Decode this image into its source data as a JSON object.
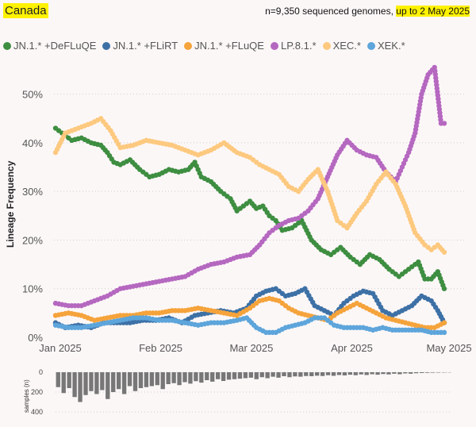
{
  "header": {
    "title": "Canada",
    "info_prefix": "n=9,350 sequenced genomes, ",
    "info_highlight": "up to 2 May 2025"
  },
  "colors": {
    "JN.1.* +DeFLuQE": "#3e8e41",
    "JN.1.* +FLiRT": "#3d71a6",
    "JN.1.* +FLuQE": "#f5a33b",
    "LP.8.1.*": "#b568c0",
    "XEC.*": "#fdc97f",
    "XEK.*": "#5da5db"
  },
  "chart_data": {
    "type": "line",
    "ylabel": "Lineage Frequency",
    "xlim": [
      "2025-01-01",
      "2025-05-01"
    ],
    "ylim": [
      0,
      0.55
    ],
    "yticks": [
      "0%",
      "10%",
      "20%",
      "30%",
      "40%",
      "50%"
    ],
    "xticks": [
      "Jan 2025",
      "Feb 2025",
      "Mar 2025",
      "Apr 2025",
      "May 2025"
    ],
    "grid": "horizontal dotted",
    "legend": "top",
    "series": [
      {
        "name": "JN.1.* +DeFLuQE",
        "points": [
          [
            "2025-01-01",
            0.43
          ],
          [
            "2025-01-03",
            0.42
          ],
          [
            "2025-01-06",
            0.405
          ],
          [
            "2025-01-09",
            0.41
          ],
          [
            "2025-01-12",
            0.4
          ],
          [
            "2025-01-15",
            0.395
          ],
          [
            "2025-01-17",
            0.38
          ],
          [
            "2025-01-19",
            0.36
          ],
          [
            "2025-01-21",
            0.355
          ],
          [
            "2025-01-24",
            0.365
          ],
          [
            "2025-01-27",
            0.345
          ],
          [
            "2025-01-30",
            0.33
          ],
          [
            "2025-02-02",
            0.335
          ],
          [
            "2025-02-05",
            0.345
          ],
          [
            "2025-02-08",
            0.34
          ],
          [
            "2025-02-11",
            0.345
          ],
          [
            "2025-02-13",
            0.36
          ],
          [
            "2025-02-15",
            0.33
          ],
          [
            "2025-02-18",
            0.32
          ],
          [
            "2025-02-21",
            0.3
          ],
          [
            "2025-02-24",
            0.285
          ],
          [
            "2025-02-26",
            0.26
          ],
          [
            "2025-02-28",
            0.27
          ],
          [
            "2025-03-02",
            0.28
          ],
          [
            "2025-03-04",
            0.265
          ],
          [
            "2025-03-06",
            0.27
          ],
          [
            "2025-03-08",
            0.25
          ],
          [
            "2025-03-10",
            0.24
          ],
          [
            "2025-03-12",
            0.22
          ],
          [
            "2025-03-15",
            0.225
          ],
          [
            "2025-03-18",
            0.24
          ],
          [
            "2025-03-21",
            0.2
          ],
          [
            "2025-03-24",
            0.18
          ],
          [
            "2025-03-27",
            0.17
          ],
          [
            "2025-03-30",
            0.185
          ],
          [
            "2025-04-02",
            0.165
          ],
          [
            "2025-04-05",
            0.15
          ],
          [
            "2025-04-08",
            0.17
          ],
          [
            "2025-04-11",
            0.16
          ],
          [
            "2025-04-14",
            0.14
          ],
          [
            "2025-04-17",
            0.125
          ],
          [
            "2025-04-20",
            0.14
          ],
          [
            "2025-04-23",
            0.155
          ],
          [
            "2025-04-25",
            0.12
          ],
          [
            "2025-04-27",
            0.12
          ],
          [
            "2025-04-29",
            0.135
          ],
          [
            "2025-05-01",
            0.1
          ]
        ]
      },
      {
        "name": "JN.1.* +FLiRT",
        "points": [
          [
            "2025-01-01",
            0.03
          ],
          [
            "2025-01-04",
            0.02
          ],
          [
            "2025-01-08",
            0.025
          ],
          [
            "2025-01-12",
            0.02
          ],
          [
            "2025-01-16",
            0.03
          ],
          [
            "2025-01-20",
            0.03
          ],
          [
            "2025-01-24",
            0.03
          ],
          [
            "2025-01-28",
            0.035
          ],
          [
            "2025-02-01",
            0.035
          ],
          [
            "2025-02-05",
            0.04
          ],
          [
            "2025-02-09",
            0.03
          ],
          [
            "2025-02-13",
            0.045
          ],
          [
            "2025-02-17",
            0.05
          ],
          [
            "2025-02-21",
            0.055
          ],
          [
            "2025-02-25",
            0.05
          ],
          [
            "2025-03-01",
            0.06
          ],
          [
            "2025-03-04",
            0.085
          ],
          [
            "2025-03-07",
            0.095
          ],
          [
            "2025-03-10",
            0.1
          ],
          [
            "2025-03-13",
            0.085
          ],
          [
            "2025-03-16",
            0.09
          ],
          [
            "2025-03-19",
            0.1
          ],
          [
            "2025-03-22",
            0.065
          ],
          [
            "2025-03-25",
            0.055
          ],
          [
            "2025-03-28",
            0.045
          ],
          [
            "2025-03-31",
            0.07
          ],
          [
            "2025-04-03",
            0.085
          ],
          [
            "2025-04-06",
            0.095
          ],
          [
            "2025-04-09",
            0.09
          ],
          [
            "2025-04-12",
            0.055
          ],
          [
            "2025-04-15",
            0.045
          ],
          [
            "2025-04-18",
            0.055
          ],
          [
            "2025-04-21",
            0.065
          ],
          [
            "2025-04-24",
            0.085
          ],
          [
            "2025-04-27",
            0.075
          ],
          [
            "2025-04-29",
            0.055
          ],
          [
            "2025-05-01",
            0.03
          ]
        ]
      },
      {
        "name": "JN.1.* +FLuQE",
        "points": [
          [
            "2025-01-01",
            0.045
          ],
          [
            "2025-01-05",
            0.05
          ],
          [
            "2025-01-09",
            0.045
          ],
          [
            "2025-01-13",
            0.035
          ],
          [
            "2025-01-17",
            0.04
          ],
          [
            "2025-01-21",
            0.045
          ],
          [
            "2025-01-25",
            0.045
          ],
          [
            "2025-01-29",
            0.05
          ],
          [
            "2025-02-02",
            0.05
          ],
          [
            "2025-02-06",
            0.055
          ],
          [
            "2025-02-10",
            0.055
          ],
          [
            "2025-02-14",
            0.06
          ],
          [
            "2025-02-18",
            0.055
          ],
          [
            "2025-02-22",
            0.05
          ],
          [
            "2025-02-26",
            0.045
          ],
          [
            "2025-03-02",
            0.06
          ],
          [
            "2025-03-05",
            0.075
          ],
          [
            "2025-03-08",
            0.08
          ],
          [
            "2025-03-11",
            0.075
          ],
          [
            "2025-03-14",
            0.06
          ],
          [
            "2025-03-17",
            0.05
          ],
          [
            "2025-03-20",
            0.045
          ],
          [
            "2025-03-23",
            0.04
          ],
          [
            "2025-03-26",
            0.035
          ],
          [
            "2025-03-29",
            0.05
          ],
          [
            "2025-04-01",
            0.06
          ],
          [
            "2025-04-04",
            0.07
          ],
          [
            "2025-04-07",
            0.06
          ],
          [
            "2025-04-10",
            0.05
          ],
          [
            "2025-04-13",
            0.04
          ],
          [
            "2025-04-16",
            0.035
          ],
          [
            "2025-04-19",
            0.03
          ],
          [
            "2025-04-22",
            0.025
          ],
          [
            "2025-04-25",
            0.02
          ],
          [
            "2025-04-28",
            0.02
          ],
          [
            "2025-05-01",
            0.03
          ]
        ]
      },
      {
        "name": "LP.8.1.*",
        "points": [
          [
            "2025-01-01",
            0.07
          ],
          [
            "2025-01-05",
            0.065
          ],
          [
            "2025-01-09",
            0.065
          ],
          [
            "2025-01-13",
            0.075
          ],
          [
            "2025-01-17",
            0.085
          ],
          [
            "2025-01-21",
            0.1
          ],
          [
            "2025-01-25",
            0.105
          ],
          [
            "2025-01-29",
            0.11
          ],
          [
            "2025-02-02",
            0.115
          ],
          [
            "2025-02-06",
            0.12
          ],
          [
            "2025-02-10",
            0.125
          ],
          [
            "2025-02-14",
            0.14
          ],
          [
            "2025-02-18",
            0.15
          ],
          [
            "2025-02-22",
            0.155
          ],
          [
            "2025-02-26",
            0.165
          ],
          [
            "2025-03-02",
            0.17
          ],
          [
            "2025-03-05",
            0.19
          ],
          [
            "2025-03-08",
            0.215
          ],
          [
            "2025-03-11",
            0.23
          ],
          [
            "2025-03-14",
            0.24
          ],
          [
            "2025-03-17",
            0.245
          ],
          [
            "2025-03-20",
            0.26
          ],
          [
            "2025-03-23",
            0.285
          ],
          [
            "2025-03-26",
            0.33
          ],
          [
            "2025-03-29",
            0.375
          ],
          [
            "2025-04-01",
            0.405
          ],
          [
            "2025-04-04",
            0.385
          ],
          [
            "2025-04-07",
            0.375
          ],
          [
            "2025-04-10",
            0.37
          ],
          [
            "2025-04-13",
            0.34
          ],
          [
            "2025-04-16",
            0.32
          ],
          [
            "2025-04-18",
            0.35
          ],
          [
            "2025-04-20",
            0.38
          ],
          [
            "2025-04-22",
            0.42
          ],
          [
            "2025-04-24",
            0.5
          ],
          [
            "2025-04-26",
            0.54
          ],
          [
            "2025-04-28",
            0.555
          ],
          [
            "2025-04-30",
            0.44
          ],
          [
            "2025-05-01",
            0.44
          ]
        ]
      },
      {
        "name": "XEC.*",
        "points": [
          [
            "2025-01-01",
            0.38
          ],
          [
            "2025-01-04",
            0.42
          ],
          [
            "2025-01-08",
            0.43
          ],
          [
            "2025-01-12",
            0.44
          ],
          [
            "2025-01-15",
            0.45
          ],
          [
            "2025-01-18",
            0.425
          ],
          [
            "2025-01-21",
            0.39
          ],
          [
            "2025-01-25",
            0.395
          ],
          [
            "2025-01-29",
            0.405
          ],
          [
            "2025-02-02",
            0.4
          ],
          [
            "2025-02-06",
            0.395
          ],
          [
            "2025-02-10",
            0.385
          ],
          [
            "2025-02-14",
            0.375
          ],
          [
            "2025-02-18",
            0.385
          ],
          [
            "2025-02-22",
            0.4
          ],
          [
            "2025-02-26",
            0.38
          ],
          [
            "2025-03-02",
            0.37
          ],
          [
            "2025-03-05",
            0.355
          ],
          [
            "2025-03-08",
            0.345
          ],
          [
            "2025-03-11",
            0.335
          ],
          [
            "2025-03-14",
            0.31
          ],
          [
            "2025-03-17",
            0.3
          ],
          [
            "2025-03-20",
            0.325
          ],
          [
            "2025-03-23",
            0.345
          ],
          [
            "2025-03-26",
            0.3
          ],
          [
            "2025-03-29",
            0.24
          ],
          [
            "2025-04-01",
            0.225
          ],
          [
            "2025-04-04",
            0.255
          ],
          [
            "2025-04-07",
            0.28
          ],
          [
            "2025-04-10",
            0.315
          ],
          [
            "2025-04-13",
            0.34
          ],
          [
            "2025-04-16",
            0.315
          ],
          [
            "2025-04-19",
            0.27
          ],
          [
            "2025-04-22",
            0.215
          ],
          [
            "2025-04-25",
            0.19
          ],
          [
            "2025-04-27",
            0.18
          ],
          [
            "2025-04-29",
            0.19
          ],
          [
            "2025-05-01",
            0.175
          ]
        ]
      },
      {
        "name": "XEK.*",
        "points": [
          [
            "2025-01-01",
            0.025
          ],
          [
            "2025-01-05",
            0.02
          ],
          [
            "2025-01-09",
            0.02
          ],
          [
            "2025-01-13",
            0.025
          ],
          [
            "2025-01-17",
            0.03
          ],
          [
            "2025-01-21",
            0.035
          ],
          [
            "2025-01-25",
            0.04
          ],
          [
            "2025-01-29",
            0.04
          ],
          [
            "2025-02-02",
            0.035
          ],
          [
            "2025-02-06",
            0.035
          ],
          [
            "2025-02-10",
            0.03
          ],
          [
            "2025-02-14",
            0.025
          ],
          [
            "2025-02-18",
            0.03
          ],
          [
            "2025-02-22",
            0.03
          ],
          [
            "2025-02-26",
            0.035
          ],
          [
            "2025-03-01",
            0.04
          ],
          [
            "2025-03-04",
            0.02
          ],
          [
            "2025-03-07",
            0.01
          ],
          [
            "2025-03-10",
            0.01
          ],
          [
            "2025-03-13",
            0.02
          ],
          [
            "2025-03-16",
            0.025
          ],
          [
            "2025-03-19",
            0.03
          ],
          [
            "2025-03-22",
            0.04
          ],
          [
            "2025-03-25",
            0.04
          ],
          [
            "2025-03-28",
            0.025
          ],
          [
            "2025-03-31",
            0.02
          ],
          [
            "2025-04-03",
            0.02
          ],
          [
            "2025-04-06",
            0.02
          ],
          [
            "2025-04-09",
            0.015
          ],
          [
            "2025-04-12",
            0.02
          ],
          [
            "2025-04-15",
            0.015
          ],
          [
            "2025-04-18",
            0.015
          ],
          [
            "2025-04-21",
            0.015
          ],
          [
            "2025-04-24",
            0.015
          ],
          [
            "2025-04-27",
            0.01
          ],
          [
            "2025-05-01",
            0.01
          ]
        ]
      }
    ],
    "samples": {
      "ylabel": "samples (n)",
      "yticks": [
        "0",
        "200",
        "400"
      ],
      "ylim": [
        0,
        400
      ],
      "values": [
        150,
        210,
        160,
        250,
        300,
        230,
        190,
        220,
        180,
        270,
        200,
        170,
        220,
        140,
        190,
        160,
        150,
        140,
        130,
        170,
        120,
        110,
        130,
        100,
        115,
        90,
        105,
        80,
        95,
        70,
        88,
        75,
        70,
        65,
        60,
        55,
        70,
        50,
        60,
        45,
        55,
        40,
        50,
        42,
        45,
        38,
        40,
        35,
        38,
        30,
        36,
        28,
        32,
        25,
        30,
        22,
        28,
        20,
        25,
        18,
        22,
        15,
        20,
        12,
        15,
        10,
        8,
        6,
        5,
        4,
        3,
        2
      ]
    }
  }
}
